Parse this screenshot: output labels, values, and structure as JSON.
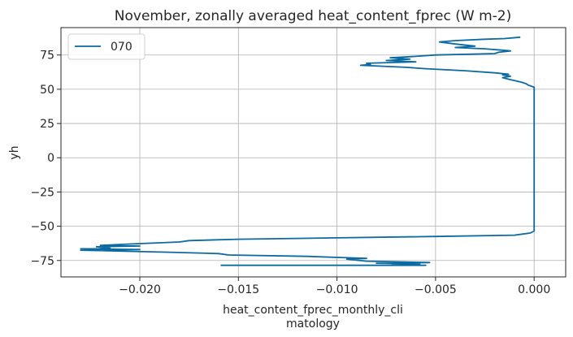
{
  "chart_data": {
    "type": "line",
    "title": "November, zonally averaged heat_content_fprec (W m-2)",
    "xlabel_line1": "heat_content_fprec_monthly_cli",
    "xlabel_line2": "matology",
    "ylabel": "yh",
    "xlim": [
      -0.024,
      0.0016
    ],
    "ylim": [
      -87,
      95
    ],
    "xticks": [
      -0.02,
      -0.015,
      -0.01,
      -0.005,
      0.0
    ],
    "xtick_labels": [
      "−0.020",
      "−0.015",
      "−0.010",
      "−0.005",
      "0.000"
    ],
    "yticks": [
      -75,
      -50,
      -25,
      0,
      25,
      50,
      75
    ],
    "ytick_labels": [
      "−75",
      "−50",
      "−25",
      "0",
      "25",
      "50",
      "75"
    ],
    "grid": true,
    "legend_position": "top-left",
    "series": [
      {
        "name": "070",
        "color": "#0b6aa2",
        "points": [
          [
            -0.0159,
            -78.5
          ],
          [
            -0.0055,
            -78.5
          ],
          [
            -0.0072,
            -78.0
          ],
          [
            -0.0058,
            -77.5
          ],
          [
            -0.008,
            -77.0
          ],
          [
            -0.0053,
            -76.5
          ],
          [
            -0.0085,
            -75.5
          ],
          [
            -0.0095,
            -74.0
          ],
          [
            -0.0085,
            -73.5
          ],
          [
            -0.0095,
            -73.0
          ],
          [
            -0.0115,
            -72.0
          ],
          [
            -0.0155,
            -71.0
          ],
          [
            -0.016,
            -70.0
          ],
          [
            -0.0185,
            -69.0
          ],
          [
            -0.023,
            -67.5
          ],
          [
            -0.02,
            -67.0
          ],
          [
            -0.023,
            -66.5
          ],
          [
            -0.0215,
            -66.0
          ],
          [
            -0.0222,
            -65.0
          ],
          [
            -0.02,
            -64.5
          ],
          [
            -0.022,
            -64.0
          ],
          [
            -0.0205,
            -63.0
          ],
          [
            -0.018,
            -61.5
          ],
          [
            -0.0175,
            -60.5
          ],
          [
            -0.015,
            -59.5
          ],
          [
            -0.01,
            -58.5
          ],
          [
            -0.005,
            -57.5
          ],
          [
            -0.001,
            -56.5
          ],
          [
            -0.0002,
            -55.0
          ],
          [
            0.0,
            -53.5
          ],
          [
            0.0,
            0.0
          ],
          [
            0.0,
            50.0
          ],
          [
            0.0,
            51.5
          ],
          [
            -0.0001,
            52.0
          ],
          [
            -0.0003,
            53.0
          ],
          [
            -0.0004,
            54.0
          ],
          [
            -0.0006,
            55.0
          ],
          [
            -0.0009,
            56.0
          ],
          [
            -0.0012,
            57.0
          ],
          [
            -0.0016,
            58.5
          ],
          [
            -0.0012,
            59.5
          ],
          [
            -0.0016,
            60.5
          ],
          [
            -0.0013,
            61.0
          ],
          [
            -0.002,
            62.0
          ],
          [
            -0.0035,
            63.5
          ],
          [
            -0.0055,
            65.0
          ],
          [
            -0.0065,
            66.0
          ],
          [
            -0.0088,
            67.5
          ],
          [
            -0.0083,
            68.0
          ],
          [
            -0.0085,
            69.0
          ],
          [
            -0.006,
            70.0
          ],
          [
            -0.0075,
            71.0
          ],
          [
            -0.0063,
            72.0
          ],
          [
            -0.0073,
            73.0
          ],
          [
            -0.006,
            74.0
          ],
          [
            -0.005,
            75.0
          ],
          [
            -0.002,
            76.0
          ],
          [
            -0.0018,
            77.0
          ],
          [
            -0.0012,
            78.0
          ],
          [
            -0.0016,
            78.5
          ],
          [
            -0.0025,
            79.5
          ],
          [
            -0.004,
            80.5
          ],
          [
            -0.003,
            81.5
          ],
          [
            -0.004,
            83.0
          ],
          [
            -0.0048,
            84.5
          ],
          [
            -0.004,
            85.5
          ],
          [
            -0.0025,
            86.5
          ],
          [
            -0.0015,
            87.0
          ],
          [
            -0.0007,
            88.0
          ]
        ]
      }
    ]
  }
}
